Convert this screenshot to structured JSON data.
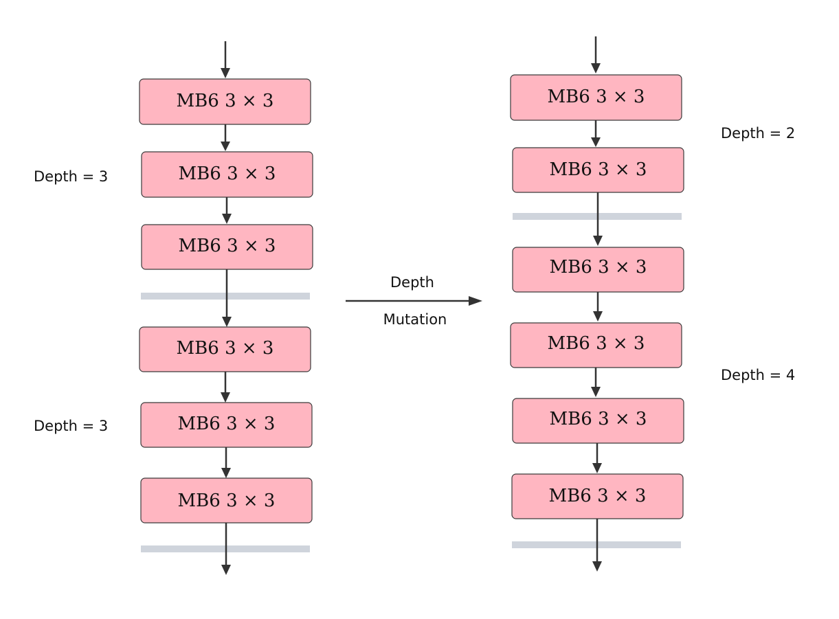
{
  "block_label": "MB6 3 × 3",
  "left_stage": {
    "label_1": "Depth = 3",
    "label_2": "Depth = 3",
    "block_count": 6
  },
  "right_stage": {
    "label_1": "Depth = 2",
    "label_2": "Depth = 4",
    "block_count": 6
  },
  "mutation": {
    "line_1": "Depth",
    "line_2": "Mutation"
  },
  "colors": {
    "block_fill": "#ffb6c1",
    "block_stroke": "#3a3a3a",
    "separator": "#cfd4dc",
    "arrow": "#333333"
  }
}
